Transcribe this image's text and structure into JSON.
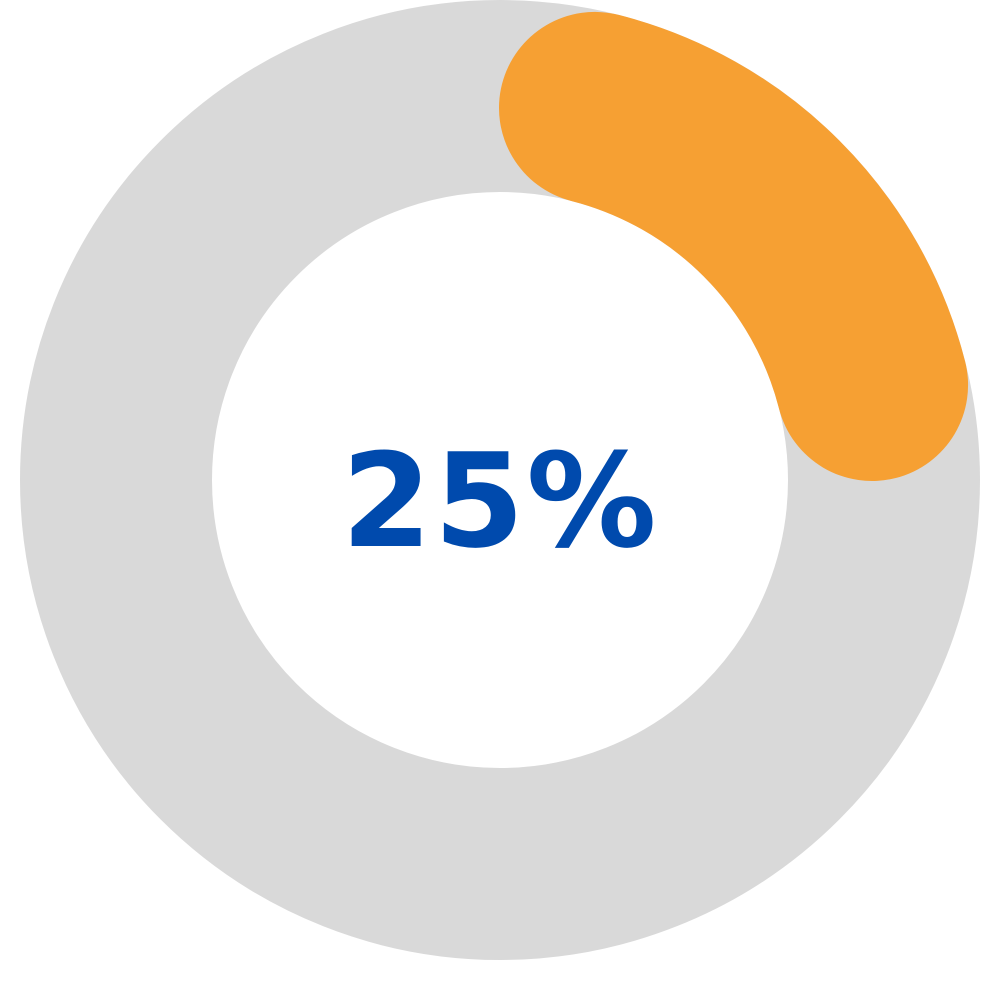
{
  "chart_data": {
    "type": "pie",
    "variant": "donut-progress",
    "value": 25,
    "max": 100,
    "label": "25%",
    "colors": {
      "progress": "#F6A033",
      "track": "#D9D9D9",
      "label": "#004AAD",
      "background": "#FFFFFF"
    }
  }
}
